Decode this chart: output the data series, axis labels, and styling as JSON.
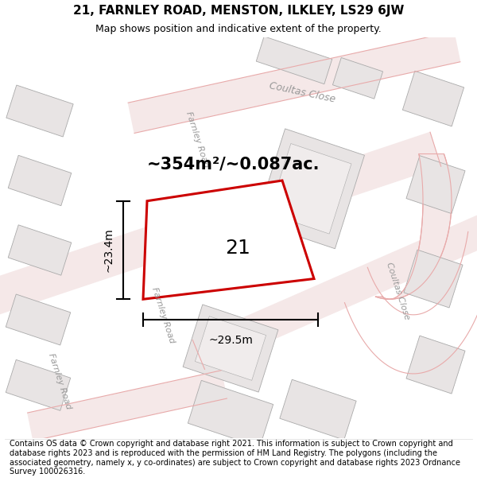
{
  "title": "21, FARNLEY ROAD, MENSTON, ILKLEY, LS29 6JW",
  "subtitle": "Map shows position and indicative extent of the property.",
  "area_label": "~354m²/~0.087ac.",
  "property_number": "21",
  "dim_width": "~29.5m",
  "dim_height": "~23.4m",
  "footer": "Contains OS data © Crown copyright and database right 2021. This information is subject to Crown copyright and database rights 2023 and is reproduced with the permission of HM Land Registry. The polygons (including the associated geometry, namely x, y co-ordinates) are subject to Crown copyright and database rights 2023 Ordnance Survey 100026316.",
  "map_bg": "#ffffff",
  "road_line_color": "#e8aaaa",
  "building_fill": "#e8e4e4",
  "building_edge": "#aaaaaa",
  "plot_edge_color": "#cc0000",
  "plot_fill": "#ffffff",
  "label_color": "#999999",
  "title_fontsize": 11,
  "subtitle_fontsize": 9,
  "footer_fontsize": 7,
  "area_fontsize": 15,
  "dim_fontsize": 10,
  "street_fontsize": 8,
  "num_fontsize": 18
}
